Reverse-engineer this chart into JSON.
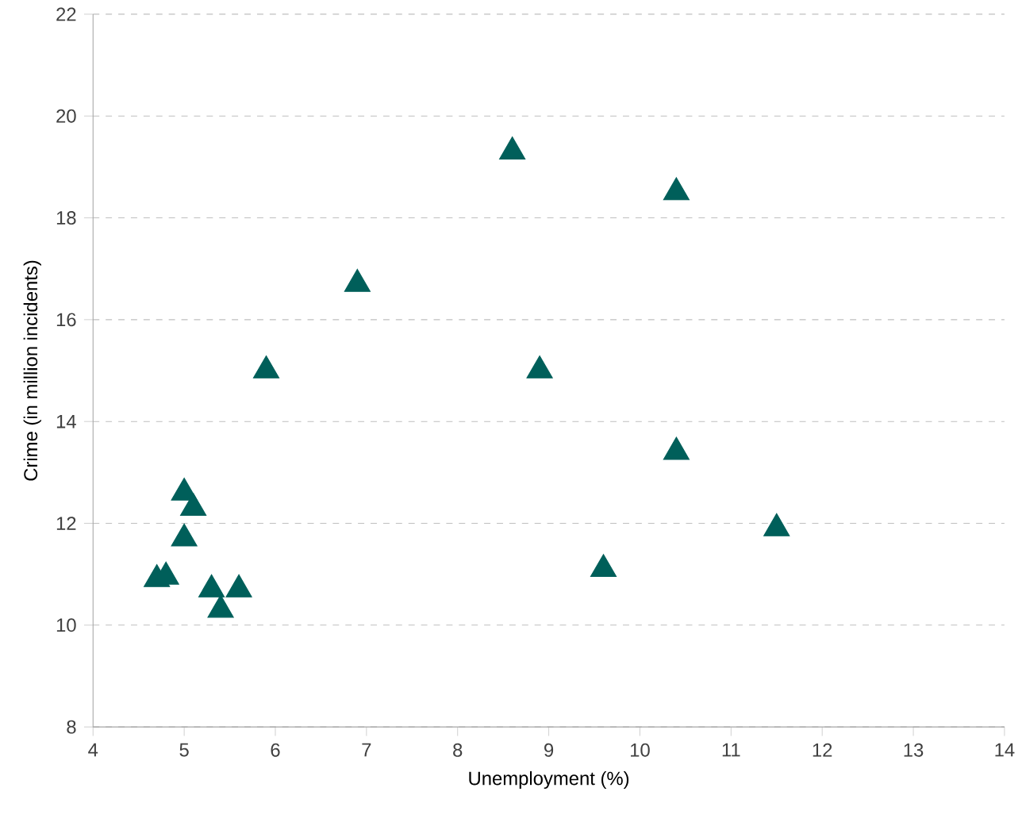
{
  "chart_data": {
    "type": "scatter",
    "xlabel": "Unemployment (%)",
    "ylabel": "Crime (in million incidents)",
    "x": [
      8.6,
      10.4,
      6.9,
      5.9,
      8.9,
      10.4,
      11.5,
      9.6,
      5.0,
      5.1,
      5.0,
      4.7,
      4.8,
      5.3,
      5.6,
      5.4
    ],
    "values": [
      19.3,
      18.5,
      16.7,
      15.0,
      15.0,
      13.4,
      11.9,
      11.1,
      12.6,
      12.3,
      11.7,
      10.9,
      10.95,
      10.7,
      10.7,
      10.3
    ],
    "color": "#005f5a",
    "marker": "triangle",
    "grid": "y",
    "xlim": [
      4,
      14
    ],
    "xticks": [
      4,
      5,
      6,
      7,
      8,
      9,
      10,
      11,
      12,
      13,
      14
    ],
    "ylim": [
      8,
      22
    ],
    "yticks": [
      8,
      10,
      12,
      14,
      16,
      18,
      20,
      22
    ]
  }
}
